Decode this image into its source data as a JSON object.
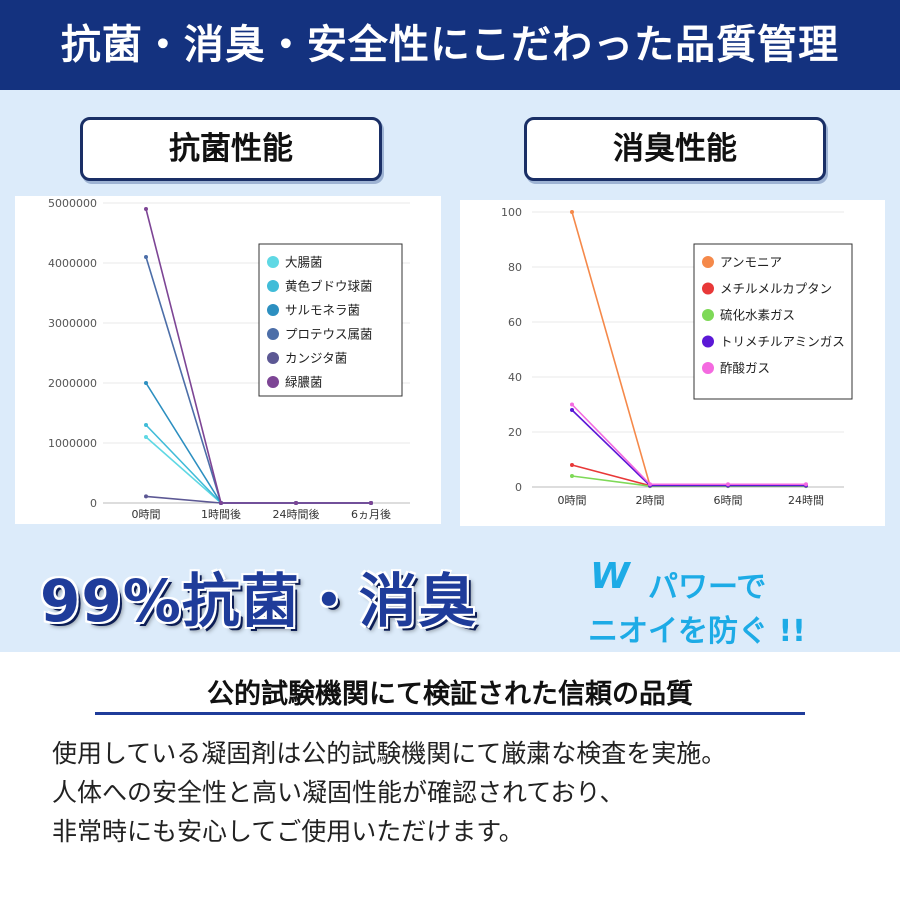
{
  "header": {
    "title": "抗菌・消臭・安全性にこだわった品質管理"
  },
  "labels": {
    "left_pill": "抗菌性能",
    "right_pill": "消臭性能"
  },
  "claim": {
    "big": "99%抗菌・消臭",
    "w": "W",
    "line1": "パワーで",
    "line2": "ニオイを防ぐ !!"
  },
  "subheading": "公的試験機関にて検証された信頼の品質",
  "body": {
    "lines": [
      "使用している凝固剤は公的試験機関にて厳粛な検査を実施。",
      "人体への安全性と高い凝固性能が確認されており、",
      "非常時にも安心してご使用いただけます。"
    ]
  },
  "chart_data": [
    {
      "type": "line",
      "categories": [
        "0時間",
        "1時間後",
        "24時間後",
        "6ヵ月後"
      ],
      "ylim": [
        0,
        5000000
      ],
      "yticks": [
        "0",
        "1000000",
        "2000000",
        "3000000",
        "4000000",
        "5000000"
      ],
      "grid": true,
      "legend": "top-right",
      "series": [
        {
          "name": "大腸菌",
          "color": "#5fd8e4",
          "values": [
            1100000,
            0,
            0,
            0
          ]
        },
        {
          "name": "黄色ブドウ球菌",
          "color": "#40bcd8",
          "values": [
            1300000,
            0,
            0,
            0
          ]
        },
        {
          "name": "サルモネラ菌",
          "color": "#2c8fc0",
          "values": [
            2000000,
            0,
            0,
            0
          ]
        },
        {
          "name": "プロテウス属菌",
          "color": "#4c6ea8",
          "values": [
            4100000,
            0,
            0,
            0
          ]
        },
        {
          "name": "カンジタ菌",
          "color": "#5c5894",
          "values": [
            110000,
            0,
            0,
            0
          ]
        },
        {
          "name": "緑膿菌",
          "color": "#7d4595",
          "values": [
            4900000,
            0,
            0,
            0
          ]
        }
      ]
    },
    {
      "type": "line",
      "categories": [
        "0時間",
        "2時間",
        "6時間",
        "24時間"
      ],
      "ylim": [
        0,
        100
      ],
      "yticks": [
        "0",
        "20",
        "40",
        "60",
        "80",
        "100"
      ],
      "grid": true,
      "legend": "top-right",
      "series": [
        {
          "name": "アンモニア",
          "color": "#f5894a",
          "values": [
            100,
            0.5,
            0.5,
            0.5
          ]
        },
        {
          "name": "メチルメルカプタン",
          "color": "#e83838",
          "values": [
            8,
            0.5,
            0.5,
            0.5
          ]
        },
        {
          "name": "硫化水素ガス",
          "color": "#7ed957",
          "values": [
            4,
            0.3,
            0.3,
            0.3
          ]
        },
        {
          "name": "トリメチルアミンガス",
          "color": "#5b18d6",
          "values": [
            28,
            0.5,
            0.5,
            0.5
          ]
        },
        {
          "name": "酢酸ガス",
          "color": "#f46ae0",
          "values": [
            30,
            1,
            1,
            1
          ]
        }
      ]
    }
  ]
}
